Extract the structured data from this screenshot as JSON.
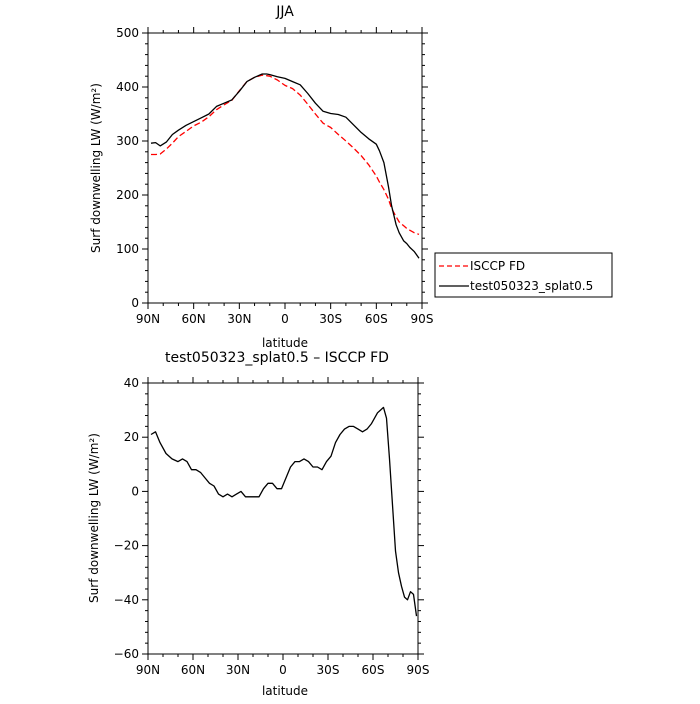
{
  "chart_data": [
    {
      "type": "line",
      "title": "JJA",
      "xlabel": "latitude",
      "ylabel": "Surf downwelling LW (W/m²)",
      "xlim": [
        90,
        -90
      ],
      "ylim": [
        0,
        500
      ],
      "xticks": [
        90,
        60,
        30,
        0,
        -30,
        -60,
        -90
      ],
      "xtick_labels": [
        "90N",
        "60N",
        "30N",
        "0",
        "30S",
        "60S",
        "90S"
      ],
      "yticks": [
        0,
        100,
        200,
        300,
        400,
        500
      ],
      "ytick_labels": [
        "0",
        "100",
        "200",
        "300",
        "400",
        "500"
      ],
      "legend": "right",
      "series": [
        {
          "name": "ISCCP FD",
          "color": "#ff0000",
          "style": "dashed",
          "x": [
            88,
            85,
            82,
            78,
            74,
            70,
            65,
            60,
            55,
            50,
            45,
            40,
            35,
            30,
            25,
            20,
            15,
            12,
            10,
            5,
            0,
            -5,
            -10,
            -15,
            -20,
            -25,
            -30,
            -35,
            -40,
            -45,
            -50,
            -55,
            -60,
            -62,
            -65,
            -68,
            -70,
            -73,
            -75,
            -78,
            -80,
            -85,
            -88
          ],
          "y": [
            275,
            275,
            276,
            285,
            296,
            308,
            318,
            328,
            335,
            345,
            358,
            367,
            375,
            393,
            410,
            418,
            422,
            421,
            420,
            413,
            403,
            397,
            385,
            368,
            350,
            333,
            325,
            312,
            300,
            287,
            273,
            256,
            235,
            224,
            210,
            192,
            175,
            160,
            150,
            143,
            138,
            130,
            127
          ]
        },
        {
          "name": "test050323_splat0.5",
          "color": "#000000",
          "style": "solid",
          "x": [
            88,
            85,
            82,
            78,
            74,
            70,
            65,
            60,
            55,
            50,
            45,
            40,
            35,
            30,
            25,
            20,
            15,
            12,
            10,
            5,
            0,
            -5,
            -10,
            -15,
            -20,
            -25,
            -30,
            -35,
            -40,
            -45,
            -50,
            -55,
            -60,
            -62,
            -65,
            -68,
            -70,
            -73,
            -75,
            -78,
            -80,
            -82,
            -85,
            -88
          ],
          "y": [
            296,
            297,
            291,
            298,
            312,
            320,
            329,
            336,
            343,
            350,
            364,
            370,
            376,
            392,
            410,
            418,
            424,
            424,
            423,
            419,
            416,
            410,
            404,
            388,
            370,
            355,
            351,
            349,
            344,
            330,
            316,
            304,
            294,
            282,
            260,
            215,
            180,
            145,
            130,
            115,
            110,
            103,
            95,
            83
          ]
        }
      ]
    },
    {
      "type": "line",
      "title": "test050323_splat0.5 – ISCCP FD",
      "xlabel": "latitude",
      "ylabel": "Surf downwelling LW (W/m²)",
      "xlim": [
        90,
        -90
      ],
      "ylim": [
        -60,
        40
      ],
      "xticks": [
        90,
        60,
        30,
        0,
        -30,
        -60,
        -90
      ],
      "xtick_labels": [
        "90N",
        "60N",
        "30N",
        "0",
        "30S",
        "60S",
        "90S"
      ],
      "yticks": [
        -60,
        -40,
        -20,
        0,
        20,
        40
      ],
      "ytick_labels": [
        "−60",
        "−40",
        "−20",
        "0",
        "20",
        "40"
      ],
      "series": [
        {
          "name": "",
          "color": "#000000",
          "style": "solid",
          "x": [
            88,
            85,
            82,
            78,
            74,
            70,
            67,
            64,
            61,
            58,
            55,
            52,
            49,
            46,
            43,
            40,
            37,
            34,
            31,
            28,
            25,
            22,
            19,
            16,
            13,
            10,
            7,
            4,
            1,
            -2,
            -5,
            -8,
            -11,
            -14,
            -17,
            -20,
            -23,
            -26,
            -29,
            -32,
            -35,
            -38,
            -41,
            -44,
            -47,
            -50,
            -53,
            -56,
            -59,
            -61,
            -63,
            -65,
            -67,
            -69,
            -71,
            -73,
            -75,
            -77,
            -79,
            -81,
            -83,
            -85,
            -87,
            -89
          ],
          "y": [
            21,
            22,
            18,
            14,
            12,
            11,
            12,
            11,
            8,
            8,
            7,
            5,
            3,
            2,
            -1,
            -2,
            -1,
            -2,
            -1,
            0,
            -2,
            -2,
            -2,
            -2,
            1,
            3,
            3,
            1,
            1,
            5,
            9,
            11,
            11,
            12,
            11,
            9,
            9,
            8,
            11,
            13,
            18,
            21,
            23,
            24,
            24,
            23,
            22,
            23,
            25,
            27,
            29,
            30,
            31,
            27,
            12,
            -5,
            -22,
            -30,
            -35,
            -39,
            -40,
            -37,
            -38,
            -46
          ]
        }
      ]
    }
  ]
}
